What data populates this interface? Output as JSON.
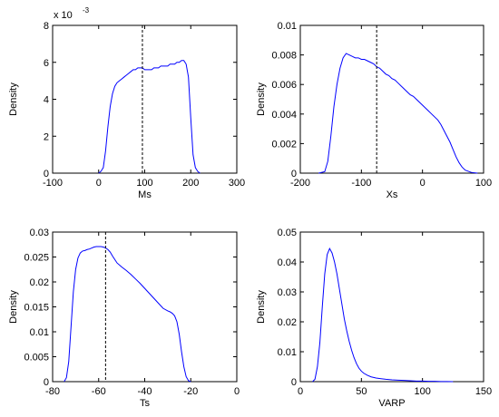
{
  "chart_data": [
    {
      "type": "line",
      "xlabel": "Ms",
      "ylabel": "Density",
      "xlim": [
        -100,
        300
      ],
      "ylim": [
        0,
        8
      ],
      "xticks": [
        "-100",
        "0",
        "100",
        "200",
        "300"
      ],
      "yticks": [
        "0",
        "2",
        "4",
        "6",
        "8"
      ],
      "y_multiplier": {
        "base": "x 10",
        "exponent": "-3"
      },
      "vline": 95,
      "series": [
        {
          "color": "#0000ff",
          "x": [
            0,
            5,
            10,
            15,
            20,
            25,
            30,
            35,
            40,
            45,
            50,
            55,
            60,
            65,
            70,
            75,
            80,
            85,
            90,
            95,
            100,
            105,
            110,
            115,
            120,
            125,
            130,
            135,
            140,
            145,
            150,
            155,
            160,
            165,
            170,
            175,
            180,
            185,
            190,
            195,
            200,
            205,
            210,
            215,
            220
          ],
          "y": [
            0.0,
            0.1,
            0.3,
            1.2,
            2.5,
            3.6,
            4.3,
            4.7,
            4.9,
            5.0,
            5.1,
            5.2,
            5.3,
            5.4,
            5.5,
            5.6,
            5.6,
            5.7,
            5.7,
            5.7,
            5.6,
            5.6,
            5.6,
            5.6,
            5.7,
            5.7,
            5.7,
            5.8,
            5.8,
            5.8,
            5.8,
            5.9,
            5.9,
            5.9,
            6.0,
            6.0,
            6.1,
            6.1,
            5.9,
            5.2,
            3.0,
            1.0,
            0.3,
            0.1,
            0.0
          ]
        }
      ]
    },
    {
      "type": "line",
      "xlabel": "Xs",
      "ylabel": "Density",
      "xlim": [
        -200,
        100
      ],
      "ylim": [
        0,
        0.01
      ],
      "xticks": [
        "-200",
        "-100",
        "0",
        "100"
      ],
      "yticks": [
        "0",
        "0.002",
        "0.004",
        "0.006",
        "0.008",
        "0.01"
      ],
      "vline": -75,
      "series": [
        {
          "color": "#0000ff",
          "x": [
            -170,
            -160,
            -155,
            -150,
            -145,
            -140,
            -135,
            -130,
            -125,
            -120,
            -115,
            -110,
            -105,
            -100,
            -95,
            -90,
            -85,
            -80,
            -75,
            -70,
            -65,
            -60,
            -55,
            -50,
            -45,
            -40,
            -35,
            -30,
            -25,
            -20,
            -15,
            -10,
            -5,
            0,
            5,
            10,
            15,
            20,
            25,
            30,
            35,
            40,
            45,
            50,
            55,
            60,
            65,
            70,
            80,
            90
          ],
          "y": [
            0.0,
            0.0001,
            0.0008,
            0.0025,
            0.0045,
            0.006,
            0.0071,
            0.0078,
            0.0081,
            0.008,
            0.0079,
            0.0078,
            0.0078,
            0.0077,
            0.0077,
            0.0076,
            0.0075,
            0.0074,
            0.0072,
            0.0071,
            0.0069,
            0.0067,
            0.0066,
            0.0064,
            0.0063,
            0.0061,
            0.0059,
            0.0057,
            0.0055,
            0.0053,
            0.0052,
            0.005,
            0.0048,
            0.0046,
            0.0044,
            0.0042,
            0.004,
            0.0038,
            0.0036,
            0.0033,
            0.0029,
            0.0025,
            0.0021,
            0.0016,
            0.0011,
            0.0007,
            0.0004,
            0.0002,
            5e-05,
            0.0
          ]
        }
      ]
    },
    {
      "type": "line",
      "xlabel": "Ts",
      "ylabel": "Density",
      "xlim": [
        -80,
        0
      ],
      "ylim": [
        0,
        0.03
      ],
      "xticks": [
        "-80",
        "-60",
        "-40",
        "-20",
        "0"
      ],
      "yticks": [
        "0",
        "0.005",
        "0.01",
        "0.015",
        "0.02",
        "0.025",
        "0.03"
      ],
      "vline": -57,
      "series": [
        {
          "color": "#0000ff",
          "x": [
            -75,
            -74,
            -73,
            -72,
            -71,
            -70,
            -69,
            -68,
            -67,
            -66,
            -65,
            -64,
            -63,
            -62,
            -61,
            -60,
            -59,
            -58,
            -57,
            -56,
            -55,
            -54,
            -53,
            -52,
            -50,
            -48,
            -46,
            -44,
            -42,
            -40,
            -38,
            -36,
            -34,
            -32,
            -30,
            -29,
            -28,
            -27,
            -26,
            -25,
            -24,
            -23,
            -22,
            -21,
            -20
          ],
          "y": [
            0.0,
            0.0008,
            0.004,
            0.011,
            0.018,
            0.0225,
            0.0248,
            0.0258,
            0.0262,
            0.0263,
            0.0265,
            0.0266,
            0.0268,
            0.027,
            0.0271,
            0.0271,
            0.0271,
            0.027,
            0.0268,
            0.0265,
            0.026,
            0.0252,
            0.0245,
            0.0238,
            0.023,
            0.0223,
            0.0215,
            0.0206,
            0.0197,
            0.0187,
            0.0177,
            0.0167,
            0.0157,
            0.0147,
            0.0142,
            0.014,
            0.0137,
            0.0132,
            0.012,
            0.0095,
            0.006,
            0.003,
            0.001,
            0.0002,
            0.0
          ]
        }
      ]
    },
    {
      "type": "line",
      "xlabel": "VARP",
      "ylabel": "Density",
      "xlim": [
        0,
        150
      ],
      "ylim": [
        0,
        0.05
      ],
      "xticks": [
        "0",
        "50",
        "100",
        "150"
      ],
      "yticks": [
        "0",
        "0.01",
        "0.02",
        "0.03",
        "0.04",
        "0.05"
      ],
      "series": [
        {
          "color": "#0000ff",
          "x": [
            10,
            12,
            14,
            16,
            18,
            20,
            22,
            24,
            26,
            28,
            30,
            32,
            34,
            36,
            38,
            40,
            42,
            44,
            46,
            48,
            50,
            52,
            55,
            58,
            62,
            66,
            70,
            75,
            80,
            85,
            90,
            95,
            100,
            105,
            110,
            115,
            120,
            125
          ],
          "y": [
            0.0,
            0.0008,
            0.005,
            0.013,
            0.025,
            0.036,
            0.0425,
            0.0445,
            0.043,
            0.04,
            0.036,
            0.031,
            0.026,
            0.021,
            0.017,
            0.0135,
            0.0105,
            0.008,
            0.006,
            0.0045,
            0.0035,
            0.0028,
            0.0021,
            0.0016,
            0.0012,
            0.001,
            0.0008,
            0.0006,
            0.0005,
            0.0004,
            0.0003,
            0.0002,
            0.0002,
            0.0001,
            0.0001,
            5e-05,
            2e-05,
            0.0
          ]
        }
      ]
    }
  ]
}
